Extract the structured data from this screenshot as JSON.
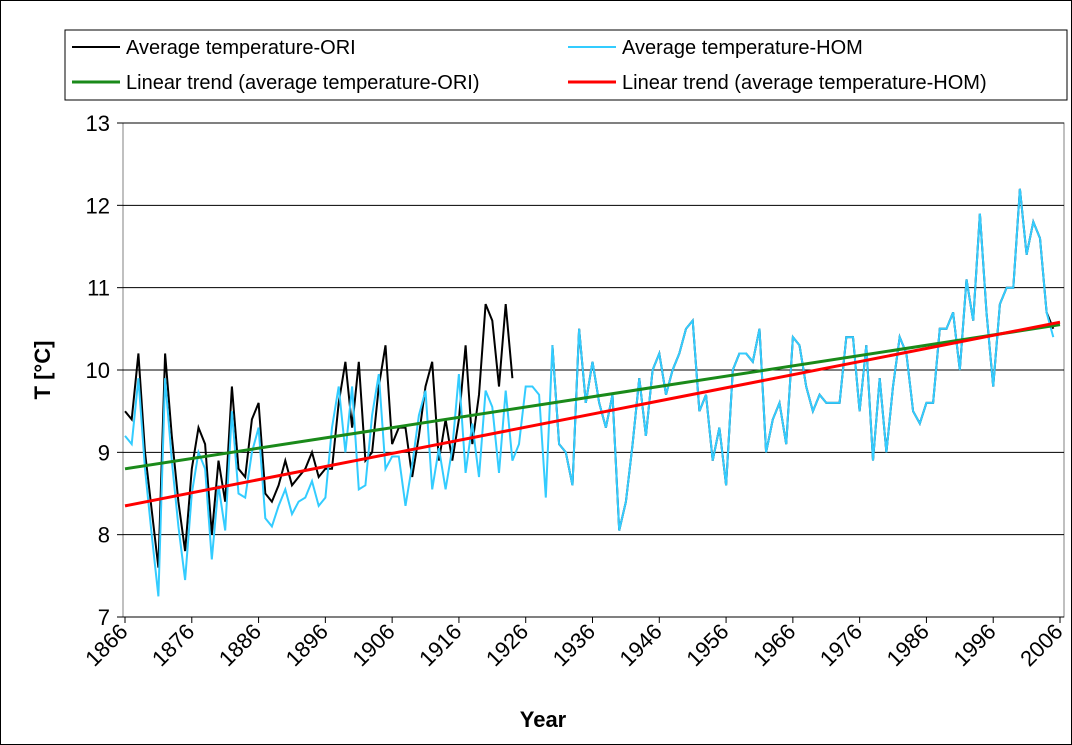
{
  "chart_data": {
    "type": "line",
    "ylabel": "T [°C]",
    "xlabel": "Year",
    "xlim": [
      1866,
      2006
    ],
    "xticks": [
      1866,
      1876,
      1886,
      1896,
      1906,
      1916,
      1926,
      1936,
      1946,
      1956,
      1966,
      1976,
      1986,
      1996,
      2006
    ],
    "ylim": [
      7,
      13
    ],
    "yticks": [
      7,
      8,
      9,
      10,
      11,
      12,
      13
    ],
    "grid": true,
    "x": [
      1866,
      1867,
      1868,
      1869,
      1870,
      1871,
      1872,
      1873,
      1874,
      1875,
      1876,
      1877,
      1878,
      1879,
      1880,
      1881,
      1882,
      1883,
      1884,
      1885,
      1886,
      1887,
      1888,
      1889,
      1890,
      1891,
      1892,
      1893,
      1894,
      1895,
      1896,
      1897,
      1898,
      1899,
      1900,
      1901,
      1902,
      1903,
      1904,
      1905,
      1906,
      1907,
      1908,
      1909,
      1910,
      1911,
      1912,
      1913,
      1914,
      1915,
      1916,
      1917,
      1918,
      1919,
      1920,
      1921,
      1922,
      1923,
      1924,
      1925,
      1926,
      1927,
      1928,
      1929,
      1930,
      1931,
      1932,
      1933,
      1934,
      1935,
      1936,
      1937,
      1938,
      1939,
      1940,
      1941,
      1942,
      1943,
      1944,
      1945,
      1946,
      1947,
      1948,
      1949,
      1950,
      1951,
      1952,
      1953,
      1954,
      1955,
      1956,
      1957,
      1958,
      1959,
      1960,
      1961,
      1962,
      1963,
      1964,
      1965,
      1966,
      1967,
      1968,
      1969,
      1970,
      1971,
      1972,
      1973,
      1974,
      1975,
      1976,
      1977,
      1978,
      1979,
      1980,
      1981,
      1982,
      1983,
      1984,
      1985,
      1986,
      1987,
      1988,
      1989,
      1990,
      1991,
      1992,
      1993,
      1994,
      1995,
      1996,
      1997,
      1998,
      1999,
      2000,
      2001,
      2002,
      2003,
      2004,
      2005
    ],
    "series": [
      {
        "name": "Average temperature-ORI",
        "color": "#000000",
        "values": [
          9.5,
          9.4,
          10.2,
          9.0,
          8.3,
          7.6,
          10.2,
          9.2,
          8.4,
          7.8,
          8.8,
          9.3,
          9.1,
          8.0,
          8.9,
          8.4,
          9.8,
          8.8,
          8.7,
          9.4,
          9.6,
          8.5,
          8.4,
          8.6,
          8.9,
          8.6,
          8.7,
          8.8,
          9.0,
          8.7,
          8.8,
          8.8,
          9.6,
          10.1,
          9.3,
          10.1,
          8.9,
          9.0,
          9.8,
          10.3,
          9.1,
          9.3,
          9.3,
          8.7,
          9.2,
          9.8,
          10.1,
          8.9,
          9.4,
          8.9,
          9.4,
          10.3,
          9.1,
          9.7,
          10.8,
          10.6,
          9.8,
          10.8,
          9.9,
          null,
          null,
          null,
          null,
          null,
          10.3,
          9.1,
          9.0,
          8.6,
          10.5,
          9.6,
          10.1,
          9.6,
          9.3,
          9.7,
          8.05,
          8.4,
          9.1,
          9.9,
          9.2,
          10.0,
          10.2,
          9.7,
          10.0,
          10.2,
          10.5,
          10.6,
          9.5,
          9.7,
          8.9,
          9.3,
          8.6,
          10.0,
          10.2,
          10.2,
          10.1,
          10.5,
          9.0,
          9.4,
          9.6,
          9.1,
          10.4,
          10.3,
          9.8,
          9.5,
          9.7,
          9.6,
          9.6,
          9.6,
          10.4,
          10.4,
          9.5,
          10.3,
          8.9,
          9.9,
          9.0,
          9.8,
          10.4,
          10.2,
          9.5,
          9.35,
          9.6,
          9.6,
          10.5,
          10.5,
          10.7,
          10.0,
          11.1,
          10.6,
          11.9,
          10.7,
          9.8,
          10.8,
          11.0,
          11.0,
          12.2,
          11.4,
          11.8,
          11.6,
          10.7,
          10.5
        ]
      },
      {
        "name": "Average temperature-HOM",
        "color": "#33ccff",
        "values": [
          9.2,
          9.1,
          9.9,
          8.8,
          8.0,
          7.25,
          9.9,
          8.9,
          8.1,
          7.45,
          8.5,
          9.0,
          8.8,
          7.7,
          8.6,
          8.05,
          9.5,
          8.5,
          8.45,
          9.0,
          9.3,
          8.2,
          8.1,
          8.35,
          8.55,
          8.25,
          8.4,
          8.45,
          8.65,
          8.35,
          8.45,
          9.3,
          9.8,
          9.0,
          9.8,
          8.55,
          8.6,
          9.45,
          9.95,
          8.8,
          8.95,
          8.95,
          8.35,
          8.85,
          9.45,
          9.75,
          8.55,
          9.05,
          8.55,
          9.05,
          9.95,
          8.75,
          9.35,
          8.7,
          9.75,
          9.55,
          8.75,
          9.75,
          8.9,
          9.1,
          9.8,
          9.8,
          9.7,
          8.45,
          10.3,
          9.1,
          9.0,
          8.6,
          10.5,
          9.6,
          10.1,
          9.6,
          9.3,
          9.7,
          8.05,
          8.4,
          9.1,
          9.9,
          9.2,
          10.0,
          10.2,
          9.7,
          10.0,
          10.2,
          10.5,
          10.6,
          9.5,
          9.7,
          8.9,
          9.3,
          8.6,
          10.0,
          10.2,
          10.2,
          10.1,
          10.5,
          9.0,
          9.4,
          9.6,
          9.1,
          10.4,
          10.3,
          9.8,
          9.5,
          9.7,
          9.6,
          9.6,
          9.6,
          10.4,
          10.4,
          9.5,
          10.3,
          8.9,
          9.9,
          9.0,
          9.8,
          10.4,
          10.2,
          9.5,
          9.35,
          9.6,
          9.6,
          10.5,
          10.5,
          10.7,
          10.0,
          11.1,
          10.6,
          11.9,
          10.7,
          9.8,
          10.8,
          11.0,
          11.0,
          12.2,
          11.4,
          11.8,
          11.6,
          10.7,
          10.4
        ]
      },
      {
        "name": "Linear trend (average temperature-ORI)",
        "color": "#1a8a1a",
        "x": [
          1866,
          2006
        ],
        "values": [
          8.8,
          10.55
        ]
      },
      {
        "name": "Linear trend (average temperature-HOM)",
        "color": "#ff0000",
        "x": [
          1866,
          2006
        ],
        "values": [
          8.35,
          10.58
        ]
      }
    ]
  }
}
